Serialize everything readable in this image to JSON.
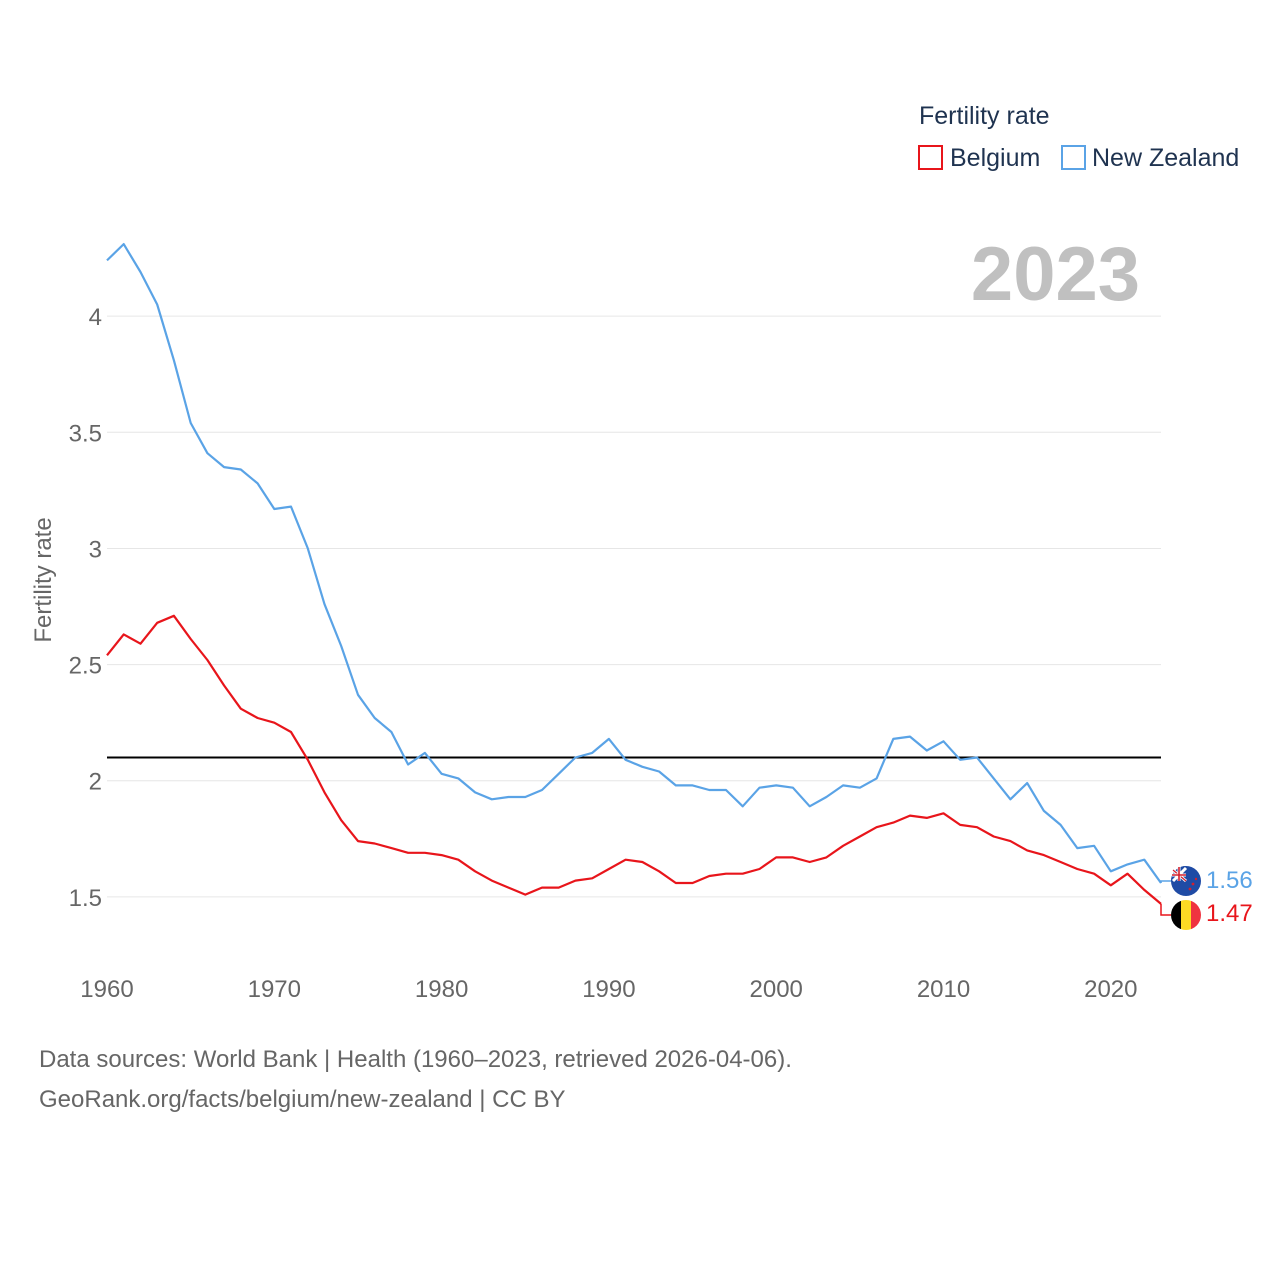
{
  "chart_data": {
    "type": "line",
    "title": "",
    "year_display": "2023",
    "ylabel": "Fertility rate",
    "xlabel": "",
    "xlim": [
      1960,
      2023
    ],
    "ylim": [
      1.28,
      4.5
    ],
    "x_ticks": [
      "1960",
      "1970",
      "1980",
      "1990",
      "2000",
      "2010",
      "2020"
    ],
    "y_ticks": [
      "1.5",
      "2",
      "2.5",
      "3",
      "3.5",
      "4"
    ],
    "reference_line": 2.1,
    "reference_color": "#000000",
    "legend": {
      "title": "Fertility rate",
      "position": "top-right",
      "items": [
        "Belgium",
        "New Zealand"
      ]
    },
    "series": [
      {
        "name": "New Zealand",
        "color": "#5aa3e6",
        "end_label": "1.56",
        "start_year": 1960,
        "values": [
          4.24,
          4.31,
          4.19,
          4.05,
          3.81,
          3.54,
          3.41,
          3.35,
          3.34,
          3.28,
          3.17,
          3.18,
          3.0,
          2.76,
          2.58,
          2.37,
          2.27,
          2.21,
          2.07,
          2.12,
          2.03,
          2.01,
          1.95,
          1.92,
          1.93,
          1.93,
          1.96,
          2.03,
          2.1,
          2.12,
          2.18,
          2.09,
          2.06,
          2.04,
          1.98,
          1.98,
          1.96,
          1.96,
          1.89,
          1.97,
          1.98,
          1.97,
          1.89,
          1.93,
          1.98,
          1.97,
          2.01,
          2.18,
          2.19,
          2.13,
          2.17,
          2.09,
          2.1,
          2.01,
          1.92,
          1.99,
          1.87,
          1.81,
          1.71,
          1.72,
          1.61,
          1.64,
          1.66,
          1.56
        ]
      },
      {
        "name": "Belgium",
        "color": "#e8151b",
        "end_label": "1.47",
        "start_year": 1960,
        "values": [
          2.54,
          2.63,
          2.59,
          2.68,
          2.71,
          2.61,
          2.52,
          2.41,
          2.31,
          2.27,
          2.25,
          2.21,
          2.09,
          1.95,
          1.83,
          1.74,
          1.73,
          1.71,
          1.69,
          1.69,
          1.68,
          1.66,
          1.61,
          1.57,
          1.54,
          1.51,
          1.54,
          1.54,
          1.57,
          1.58,
          1.62,
          1.66,
          1.65,
          1.61,
          1.56,
          1.56,
          1.59,
          1.6,
          1.6,
          1.62,
          1.67,
          1.67,
          1.65,
          1.67,
          1.72,
          1.76,
          1.8,
          1.82,
          1.85,
          1.84,
          1.86,
          1.81,
          1.8,
          1.76,
          1.74,
          1.7,
          1.68,
          1.65,
          1.62,
          1.6,
          1.55,
          1.6,
          1.53,
          1.47
        ]
      }
    ]
  },
  "footer": {
    "line1": "Data sources: World Bank | Health (1960–2023, retrieved 2026-04-06).",
    "line2": "GeoRank.org/facts/belgium/new-zealand | CC BY"
  }
}
